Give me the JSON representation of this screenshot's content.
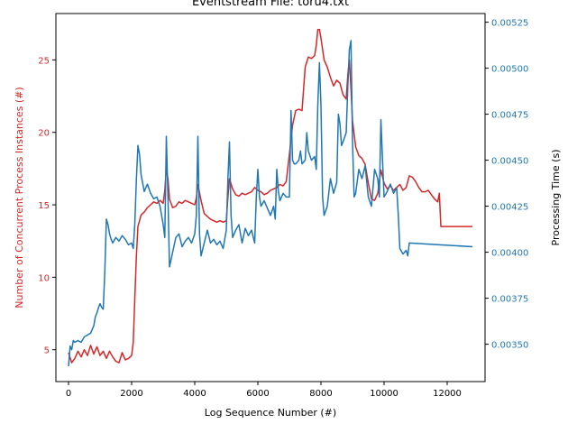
{
  "chart_data": {
    "type": "line",
    "title": "Eventstream File: toru4.txt",
    "xlabel": "Log Sequence Number (#)",
    "xlim": [
      -400,
      13200
    ],
    "x_ticks": [
      "0",
      "2000",
      "4000",
      "6000",
      "8000",
      "10000",
      "12000"
    ],
    "grid": false,
    "y_left": {
      "label": "Number of Concurrent Process Instances (#)",
      "color": "#d62728",
      "lim": [
        2.8,
        28.2
      ],
      "ticks": [
        "5",
        "10",
        "15",
        "20",
        "25"
      ]
    },
    "y_right": {
      "label": "Processing Time (s)",
      "color": "#1f77b4",
      "lim": [
        0.003297,
        0.005297
      ],
      "ticks": [
        "0.00350",
        "0.00375",
        "0.00400",
        "0.00425",
        "0.00450",
        "0.00475",
        "0.00500",
        "0.00525"
      ]
    },
    "series": [
      {
        "axis": "left",
        "color": "#d62728",
        "points": [
          [
            0,
            4.8
          ],
          [
            100,
            4.1
          ],
          [
            200,
            4.4
          ],
          [
            300,
            4.9
          ],
          [
            400,
            4.5
          ],
          [
            500,
            5.0
          ],
          [
            600,
            4.6
          ],
          [
            700,
            5.3
          ],
          [
            800,
            4.7
          ],
          [
            900,
            5.2
          ],
          [
            1000,
            4.6
          ],
          [
            1100,
            4.9
          ],
          [
            1200,
            4.4
          ],
          [
            1300,
            4.9
          ],
          [
            1400,
            4.5
          ],
          [
            1500,
            4.2
          ],
          [
            1600,
            4.1
          ],
          [
            1700,
            4.8
          ],
          [
            1800,
            4.3
          ],
          [
            1900,
            4.4
          ],
          [
            2000,
            4.6
          ],
          [
            2050,
            5.5
          ],
          [
            2100,
            8.5
          ],
          [
            2150,
            11.5
          ],
          [
            2200,
            13.5
          ],
          [
            2300,
            14.3
          ],
          [
            2400,
            14.5
          ],
          [
            2500,
            14.8
          ],
          [
            2600,
            15.0
          ],
          [
            2700,
            15.2
          ],
          [
            2800,
            15.1
          ],
          [
            2900,
            15.3
          ],
          [
            3000,
            15.1
          ],
          [
            3050,
            16.0
          ],
          [
            3100,
            17.5
          ],
          [
            3150,
            16.8
          ],
          [
            3200,
            15.4
          ],
          [
            3300,
            14.8
          ],
          [
            3400,
            14.9
          ],
          [
            3500,
            15.2
          ],
          [
            3600,
            15.1
          ],
          [
            3700,
            15.3
          ],
          [
            3800,
            15.2
          ],
          [
            3900,
            15.1
          ],
          [
            4000,
            15.0
          ],
          [
            4050,
            15.5
          ],
          [
            4100,
            16.4
          ],
          [
            4200,
            15.3
          ],
          [
            4300,
            14.4
          ],
          [
            4400,
            14.2
          ],
          [
            4500,
            14.0
          ],
          [
            4600,
            13.9
          ],
          [
            4700,
            13.8
          ],
          [
            4800,
            13.9
          ],
          [
            4900,
            13.8
          ],
          [
            5000,
            13.9
          ],
          [
            5050,
            15.5
          ],
          [
            5100,
            16.8
          ],
          [
            5200,
            16.1
          ],
          [
            5300,
            15.7
          ],
          [
            5400,
            15.6
          ],
          [
            5500,
            15.8
          ],
          [
            5600,
            15.7
          ],
          [
            5700,
            15.8
          ],
          [
            5800,
            15.9
          ],
          [
            5900,
            16.2
          ],
          [
            6000,
            16.0
          ],
          [
            6100,
            15.9
          ],
          [
            6200,
            15.7
          ],
          [
            6300,
            15.8
          ],
          [
            6400,
            16.0
          ],
          [
            6500,
            16.1
          ],
          [
            6600,
            16.2
          ],
          [
            6700,
            16.4
          ],
          [
            6800,
            16.3
          ],
          [
            6900,
            16.6
          ],
          [
            7000,
            18.5
          ],
          [
            7100,
            20.5
          ],
          [
            7200,
            21.5
          ],
          [
            7300,
            21.6
          ],
          [
            7400,
            21.5
          ],
          [
            7500,
            24.5
          ],
          [
            7600,
            25.2
          ],
          [
            7700,
            25.1
          ],
          [
            7800,
            25.3
          ],
          [
            7850,
            26.0
          ],
          [
            7900,
            27.1
          ],
          [
            7950,
            27.1
          ],
          [
            8000,
            26.5
          ],
          [
            8100,
            25.0
          ],
          [
            8200,
            24.5
          ],
          [
            8300,
            23.8
          ],
          [
            8400,
            23.2
          ],
          [
            8500,
            23.6
          ],
          [
            8600,
            23.4
          ],
          [
            8700,
            22.6
          ],
          [
            8800,
            22.3
          ],
          [
            8850,
            24.0
          ],
          [
            8900,
            25.0
          ],
          [
            8950,
            23.0
          ],
          [
            9000,
            20.8
          ],
          [
            9100,
            19.0
          ],
          [
            9200,
            18.4
          ],
          [
            9300,
            18.2
          ],
          [
            9400,
            17.8
          ],
          [
            9500,
            16.5
          ],
          [
            9600,
            15.4
          ],
          [
            9700,
            15.3
          ],
          [
            9800,
            15.8
          ],
          [
            9900,
            17.4
          ],
          [
            10000,
            16.5
          ],
          [
            10100,
            16.1
          ],
          [
            10200,
            16.3
          ],
          [
            10300,
            16.0
          ],
          [
            10400,
            16.2
          ],
          [
            10500,
            16.4
          ],
          [
            10600,
            16.0
          ],
          [
            10700,
            16.2
          ],
          [
            10800,
            17.0
          ],
          [
            10900,
            16.9
          ],
          [
            11000,
            16.6
          ],
          [
            11100,
            16.2
          ],
          [
            11200,
            15.9
          ],
          [
            11300,
            15.9
          ],
          [
            11400,
            16.0
          ],
          [
            11500,
            15.7
          ],
          [
            11600,
            15.4
          ],
          [
            11700,
            15.2
          ],
          [
            11750,
            15.8
          ],
          [
            11800,
            13.5
          ],
          [
            12000,
            13.5
          ],
          [
            12800,
            13.5
          ]
        ]
      },
      {
        "axis": "right",
        "color": "#1f77b4",
        "points": [
          [
            0,
            0.00338
          ],
          [
            50,
            0.00349
          ],
          [
            100,
            0.00347
          ],
          [
            150,
            0.00352
          ],
          [
            200,
            0.00351
          ],
          [
            300,
            0.00352
          ],
          [
            400,
            0.00351
          ],
          [
            500,
            0.00354
          ],
          [
            600,
            0.00355
          ],
          [
            700,
            0.00356
          ],
          [
            800,
            0.0036
          ],
          [
            850,
            0.00365
          ],
          [
            900,
            0.00367
          ],
          [
            950,
            0.0037
          ],
          [
            1000,
            0.00372
          ],
          [
            1050,
            0.0037
          ],
          [
            1100,
            0.00369
          ],
          [
            1150,
            0.0039
          ],
          [
            1200,
            0.00418
          ],
          [
            1250,
            0.00415
          ],
          [
            1300,
            0.0041
          ],
          [
            1350,
            0.00407
          ],
          [
            1400,
            0.00405
          ],
          [
            1500,
            0.00408
          ],
          [
            1600,
            0.00406
          ],
          [
            1700,
            0.00409
          ],
          [
            1800,
            0.00407
          ],
          [
            1900,
            0.00404
          ],
          [
            2000,
            0.00405
          ],
          [
            2050,
            0.00402
          ],
          [
            2100,
            0.00415
          ],
          [
            2150,
            0.0044
          ],
          [
            2200,
            0.00458
          ],
          [
            2250,
            0.00453
          ],
          [
            2300,
            0.00442
          ],
          [
            2400,
            0.00433
          ],
          [
            2500,
            0.00437
          ],
          [
            2600,
            0.00432
          ],
          [
            2700,
            0.00429
          ],
          [
            2800,
            0.0043
          ],
          [
            2900,
            0.00425
          ],
          [
            3000,
            0.00415
          ],
          [
            3050,
            0.00408
          ],
          [
            3100,
            0.00463
          ],
          [
            3150,
            0.0043
          ],
          [
            3200,
            0.00392
          ],
          [
            3300,
            0.004
          ],
          [
            3400,
            0.00408
          ],
          [
            3500,
            0.0041
          ],
          [
            3600,
            0.00403
          ],
          [
            3700,
            0.00406
          ],
          [
            3800,
            0.00408
          ],
          [
            3900,
            0.00405
          ],
          [
            4000,
            0.0041
          ],
          [
            4050,
            0.0042
          ],
          [
            4100,
            0.00463
          ],
          [
            4150,
            0.0041
          ],
          [
            4200,
            0.00398
          ],
          [
            4300,
            0.00405
          ],
          [
            4400,
            0.00412
          ],
          [
            4500,
            0.00405
          ],
          [
            4600,
            0.00407
          ],
          [
            4700,
            0.00404
          ],
          [
            4800,
            0.00406
          ],
          [
            4900,
            0.00402
          ],
          [
            5000,
            0.00412
          ],
          [
            5050,
            0.0044
          ],
          [
            5100,
            0.0046
          ],
          [
            5150,
            0.0042
          ],
          [
            5200,
            0.00408
          ],
          [
            5300,
            0.00412
          ],
          [
            5400,
            0.00415
          ],
          [
            5500,
            0.00405
          ],
          [
            5600,
            0.00413
          ],
          [
            5700,
            0.00409
          ],
          [
            5800,
            0.00412
          ],
          [
            5900,
            0.00405
          ],
          [
            5950,
            0.0043
          ],
          [
            6000,
            0.00445
          ],
          [
            6050,
            0.0043
          ],
          [
            6100,
            0.00425
          ],
          [
            6200,
            0.00428
          ],
          [
            6300,
            0.00424
          ],
          [
            6400,
            0.0042
          ],
          [
            6500,
            0.00425
          ],
          [
            6550,
            0.00418
          ],
          [
            6600,
            0.00445
          ],
          [
            6650,
            0.00433
          ],
          [
            6700,
            0.00428
          ],
          [
            6800,
            0.00432
          ],
          [
            6900,
            0.0043
          ],
          [
            7000,
            0.0043
          ],
          [
            7050,
            0.00477
          ],
          [
            7100,
            0.0045
          ],
          [
            7150,
            0.00448
          ],
          [
            7200,
            0.00448
          ],
          [
            7300,
            0.0045
          ],
          [
            7350,
            0.00455
          ],
          [
            7400,
            0.00448
          ],
          [
            7500,
            0.0045
          ],
          [
            7550,
            0.00465
          ],
          [
            7600,
            0.00455
          ],
          [
            7700,
            0.0045
          ],
          [
            7800,
            0.00452
          ],
          [
            7850,
            0.00445
          ],
          [
            7900,
            0.0048
          ],
          [
            7950,
            0.00503
          ],
          [
            8000,
            0.0048
          ],
          [
            8050,
            0.0043
          ],
          [
            8100,
            0.0042
          ],
          [
            8200,
            0.00425
          ],
          [
            8300,
            0.0044
          ],
          [
            8400,
            0.00432
          ],
          [
            8500,
            0.00438
          ],
          [
            8550,
            0.00475
          ],
          [
            8600,
            0.0047
          ],
          [
            8650,
            0.00458
          ],
          [
            8700,
            0.0046
          ],
          [
            8800,
            0.00465
          ],
          [
            8850,
            0.0049
          ],
          [
            8900,
            0.0051
          ],
          [
            8950,
            0.00515
          ],
          [
            9000,
            0.0046
          ],
          [
            9050,
            0.0043
          ],
          [
            9100,
            0.00432
          ],
          [
            9200,
            0.00445
          ],
          [
            9300,
            0.0044
          ],
          [
            9400,
            0.00447
          ],
          [
            9500,
            0.0043
          ],
          [
            9600,
            0.00425
          ],
          [
            9700,
            0.00445
          ],
          [
            9800,
            0.0044
          ],
          [
            9850,
            0.0043
          ],
          [
            9900,
            0.00472
          ],
          [
            9950,
            0.0045
          ],
          [
            10000,
            0.0043
          ],
          [
            10100,
            0.00433
          ],
          [
            10200,
            0.00437
          ],
          [
            10300,
            0.00432
          ],
          [
            10400,
            0.00435
          ],
          [
            10450,
            0.0042
          ],
          [
            10500,
            0.00402
          ],
          [
            10600,
            0.00399
          ],
          [
            10700,
            0.00401
          ],
          [
            10750,
            0.00398
          ],
          [
            10800,
            0.00405
          ],
          [
            12800,
            0.00403
          ]
        ]
      }
    ]
  }
}
